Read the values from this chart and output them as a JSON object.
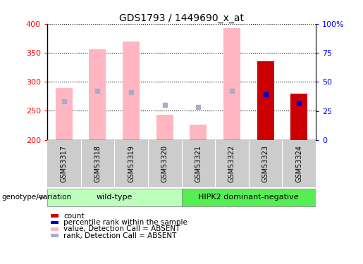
{
  "title": "GDS1793 / 1449690_x_at",
  "samples": [
    "GSM53317",
    "GSM53318",
    "GSM53319",
    "GSM53320",
    "GSM53321",
    "GSM53322",
    "GSM53323",
    "GSM53324"
  ],
  "ylim_left": [
    200,
    400
  ],
  "ylim_right": [
    0,
    100
  ],
  "yticks_left": [
    200,
    250,
    300,
    350,
    400
  ],
  "yticks_right": [
    0,
    25,
    50,
    75,
    100
  ],
  "ytick_labels_right": [
    "0",
    "25",
    "50",
    "75",
    "100%"
  ],
  "pink_bar_bottom": 200,
  "pink_bar_top": [
    290,
    356,
    370,
    243,
    226,
    393,
    200,
    200
  ],
  "pink_bar_color": "#FFB6C1",
  "blue_sq_value": [
    266,
    285,
    282,
    260,
    257,
    284,
    278,
    264
  ],
  "blue_sq_color": "#AAAACC",
  "blue_sq_present": [
    true,
    true,
    true,
    true,
    true,
    true,
    false,
    false
  ],
  "count_bar_top": [
    200,
    200,
    200,
    200,
    200,
    200,
    335,
    280
  ],
  "count_bar_color": "#CC0000",
  "count_bar_present": [
    false,
    false,
    false,
    false,
    false,
    false,
    true,
    true
  ],
  "pct_rank_value": [
    200,
    200,
    200,
    200,
    200,
    200,
    278,
    264
  ],
  "pct_rank_color": "#0000CC",
  "pct_rank_present": [
    false,
    false,
    false,
    false,
    false,
    false,
    true,
    true
  ],
  "wild_type_indices": [
    0,
    1,
    2,
    3
  ],
  "hipk2_indices": [
    4,
    5,
    6,
    7
  ],
  "wild_type_label": "wild-type",
  "hipk2_label": "HIPK2 dominant-negative",
  "genotype_label": "genotype/variation",
  "group_bg_wild": "#BBFFBB",
  "group_bg_hipk2": "#55EE55",
  "xticklabel_bg": "#CCCCCC",
  "legend_items": [
    "count",
    "percentile rank within the sample",
    "value, Detection Call = ABSENT",
    "rank, Detection Call = ABSENT"
  ],
  "legend_colors": [
    "#CC0000",
    "#0000CC",
    "#FFB6C1",
    "#AAAACC"
  ],
  "bar_width": 0.5
}
